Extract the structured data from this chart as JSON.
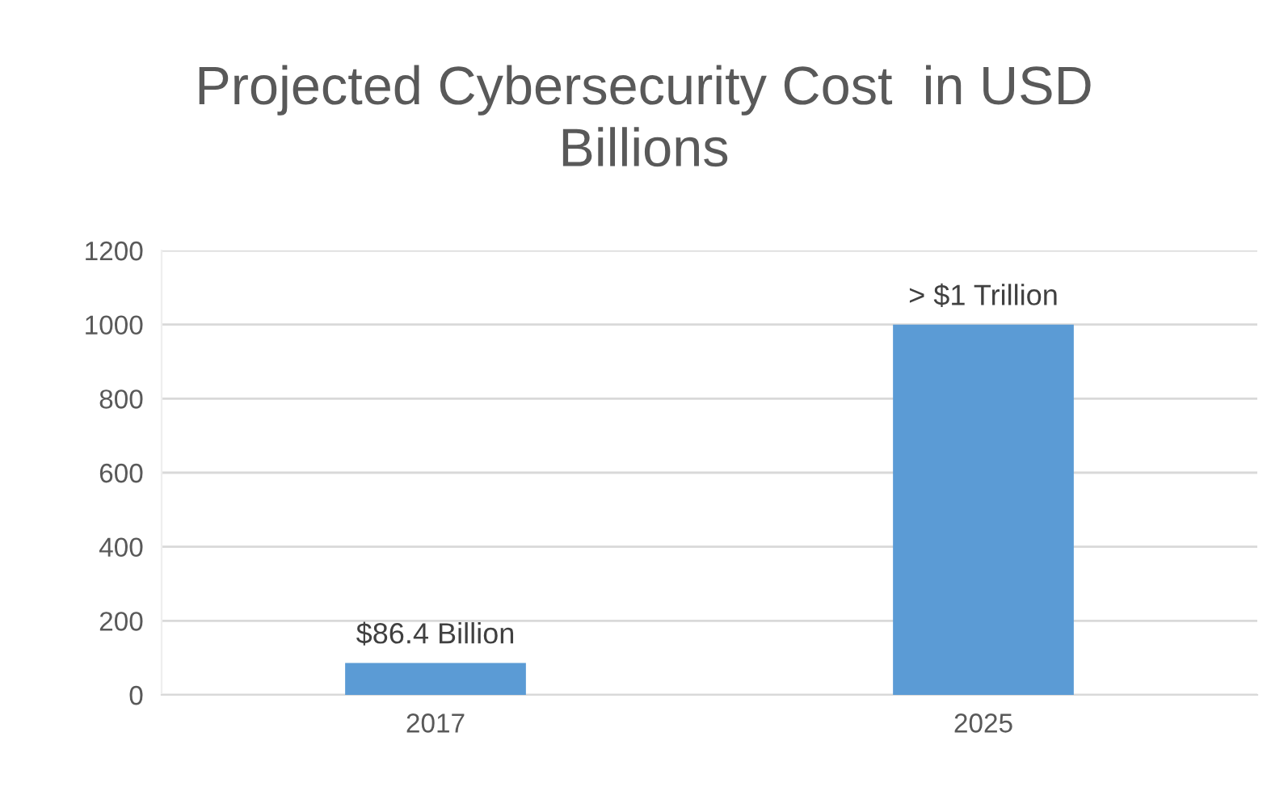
{
  "chart_data": {
    "type": "bar",
    "title": "Projected Cybersecurity Cost  in USD\nBillions",
    "categories": [
      "2017",
      "2025"
    ],
    "values": [
      86.4,
      1000
    ],
    "value_labels": [
      "$86.4 Billion",
      "> $1 Trillion"
    ],
    "color": "#5b9bd5",
    "ylim": [
      0,
      1200
    ],
    "yticks": [
      0,
      200,
      400,
      600,
      800,
      1000,
      1200
    ],
    "grid": "y",
    "legend": false
  }
}
